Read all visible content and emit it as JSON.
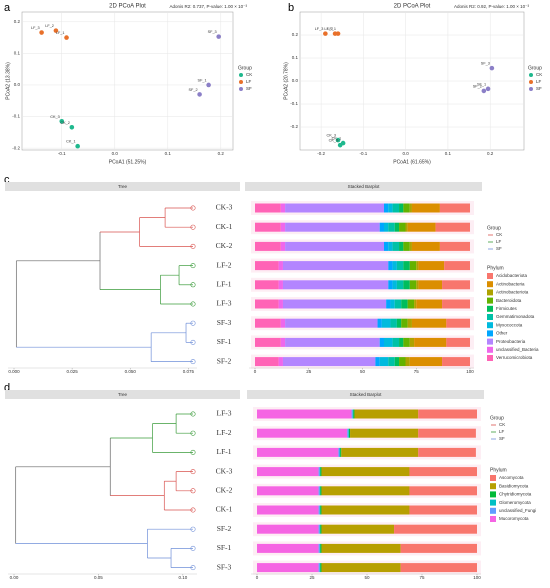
{
  "chart_data": [
    {
      "type": "scatter",
      "panel": "a",
      "title": "2D PCoA Plot",
      "subtitle": "Adonis R2: 0.737, P-value: 1.00 × 10⁻³",
      "xlabel": "PCoA1 (51.25%)",
      "ylabel": "PCoA2 (13.38%)",
      "legend_title": "Group",
      "grid": true,
      "xlim": [
        -0.175,
        0.223
      ],
      "xticks": [
        -0.1,
        {
          "value": 0,
          "label": "0.0"
        },
        0.1,
        0.2
      ],
      "ylim": [
        -0.206,
        0.231
      ],
      "yticks": [
        -0.2,
        -0.1,
        {
          "value": 0,
          "label": "0.0"
        },
        0.1,
        0.2
      ],
      "series": [
        {
          "name": "CK",
          "color": "#1fb88d",
          "x": [
            -0.1,
            -0.081,
            -0.07
          ],
          "values": [
            -0.115,
            -0.134,
            -0.194
          ],
          "labels": [
            "CK_3",
            "CK_2",
            "CK_1"
          ]
        },
        {
          "name": "LF",
          "color": "#e8702a",
          "x": [
            -0.138,
            -0.111,
            -0.091
          ],
          "values": [
            0.166,
            0.172,
            0.15
          ],
          "labels": [
            "LF_3",
            "LF_2",
            "LF_1"
          ]
        },
        {
          "name": "SF",
          "color": "#8b7fc7",
          "x": [
            0.196,
            0.177,
            0.16
          ],
          "values": [
            0.153,
            0.0,
            -0.03
          ],
          "labels": [
            "SF_3",
            "SF_1",
            "SF_2"
          ]
        }
      ]
    },
    {
      "type": "scatter",
      "panel": "b",
      "title": "2D PCoA Plot",
      "subtitle": "Adonis R2: 0.92, P-value: 1.00 × 10⁻³",
      "xlabel": "PCoA1 (61.65%)",
      "ylabel": "PCoA2 (20.78%)",
      "legend_title": "Group",
      "grid": true,
      "xlim": [
        -0.25,
        0.28
      ],
      "xticks": [
        -0.2,
        -0.1,
        {
          "value": 0,
          "label": "0.0"
        },
        0.1,
        0.2
      ],
      "ylim": [
        -0.3,
        0.3
      ],
      "yticks": [
        -0.2,
        -0.1,
        {
          "value": 0,
          "label": "0.0"
        },
        0.1,
        0.2
      ],
      "series": [
        {
          "name": "CK",
          "color": "#1fb88d",
          "x": [
            -0.16,
            -0.155,
            -0.148
          ],
          "values": [
            -0.257,
            -0.279,
            -0.27
          ],
          "labels": [
            "CK_3",
            "CK_2",
            "CK_1"
          ]
        },
        {
          "name": "LF",
          "color": "#e8702a",
          "x": [
            -0.19,
            -0.167,
            -0.16
          ],
          "values": [
            0.206,
            0.206,
            0.206
          ],
          "labels": [
            "LF_3",
            "LF_2",
            "LF_1"
          ]
        },
        {
          "name": "SF",
          "color": "#8b7fc7",
          "x": [
            0.204,
            0.185,
            0.195
          ],
          "values": [
            0.056,
            -0.043,
            -0.034
          ],
          "labels": [
            "SF_3",
            "SF_2",
            "SF_1"
          ]
        }
      ]
    },
    {
      "type": "dendrogram",
      "panel": "c",
      "title": "Tree",
      "legend_title": "Group",
      "xlim": [
        0,
        0.077
      ],
      "xticks": [
        {
          "value": 0,
          "label": "0.000"
        },
        0.025,
        {
          "value": 0.05,
          "label": "0.050"
        },
        0.075
      ],
      "groups": [
        {
          "name": "CK",
          "color": "#d9534f"
        },
        {
          "name": "LF",
          "color": "#3a9b3a"
        },
        {
          "name": "SF",
          "color": "#6f8fd8"
        }
      ],
      "leaves": [
        "CK-3",
        "CK-1",
        "CK-2",
        "LF-2",
        "LF-1",
        "LF-3",
        "SF-3",
        "SF-1",
        "SF-2"
      ],
      "leaf_groups": [
        0,
        0,
        0,
        1,
        1,
        1,
        2,
        2,
        2
      ],
      "merges": [
        {
          "left": 0,
          "right": 1,
          "x": 0.065
        },
        {
          "left": 9,
          "right": 2,
          "x": 0.054
        },
        {
          "left": 3,
          "right": 4,
          "x": 0.071
        },
        {
          "left": 11,
          "right": 5,
          "x": 0.063
        },
        {
          "left": 10,
          "right": 12,
          "x": 0.037
        },
        {
          "left": 6,
          "right": 7,
          "x": 0.074
        },
        {
          "left": 14,
          "right": 8,
          "x": 0.059
        },
        {
          "left": 13,
          "right": 15,
          "x": 0.001
        }
      ]
    },
    {
      "type": "stacked_barh",
      "title": "Stacked Barplot",
      "legend_title": "Phylum",
      "xlim": [
        0,
        100
      ],
      "xticks": [
        0,
        25,
        50,
        75,
        100
      ],
      "series": [
        {
          "name": "Acidobacteriota",
          "color": "#F8766D",
          "values": [
            14,
            16,
            14,
            12,
            13,
            13,
            11,
            11,
            13
          ]
        },
        {
          "name": "Actinobacteria",
          "color": "#DB8E00",
          "values": [
            13,
            13,
            13,
            12,
            11,
            12,
            16,
            15,
            15
          ]
        },
        {
          "name": "Actinobacteriota",
          "color": "#AEA200",
          "values": [
            1,
            1,
            1,
            1,
            1,
            1,
            2,
            2,
            2
          ]
        },
        {
          "name": "Bacteroidota",
          "color": "#64B200",
          "values": [
            3,
            3,
            3,
            3,
            3,
            3,
            3,
            3,
            3
          ]
        },
        {
          "name": "Firmicutes",
          "color": "#00BD5C",
          "values": [
            2,
            2,
            2,
            3,
            3,
            3,
            2,
            2,
            2
          ]
        },
        {
          "name": "Gemmatimonadota",
          "color": "#00C1A7",
          "values": [
            3,
            3,
            3,
            3,
            3,
            3,
            3,
            3,
            3
          ]
        },
        {
          "name": "Myxococcota",
          "color": "#00BADE",
          "values": [
            2,
            2,
            2,
            2,
            2,
            2,
            4,
            4,
            4
          ]
        },
        {
          "name": "Other",
          "color": "#00A6FF",
          "values": [
            2,
            2,
            2,
            2,
            2,
            2,
            2,
            2,
            2
          ]
        },
        {
          "name": "Proteobacteria",
          "color": "#B385FF",
          "values": [
            46,
            44,
            46,
            49,
            49,
            48,
            43,
            44,
            43
          ]
        },
        {
          "name": "unclassified_Bacteria",
          "color": "#EF67EB",
          "values": [
            2,
            2,
            2,
            2,
            2,
            2,
            2,
            2,
            2
          ]
        },
        {
          "name": "Verrucomicrobiota",
          "color": "#FF63B6",
          "values": [
            12,
            12,
            12,
            11,
            11,
            11,
            12,
            12,
            11
          ]
        }
      ]
    },
    {
      "type": "dendrogram",
      "panel": "d",
      "title": "Tree",
      "legend_title": "Group",
      "xlim": [
        0,
        0.106
      ],
      "xticks": [
        {
          "value": 0,
          "label": "0.00"
        },
        0.05,
        {
          "value": 0.1,
          "label": "0.10"
        }
      ],
      "groups": [
        {
          "name": "CK",
          "color": "#d9534f"
        },
        {
          "name": "LF",
          "color": "#3a9b3a"
        },
        {
          "name": "SF",
          "color": "#6f8fd8"
        }
      ],
      "leaves": [
        "LF-3",
        "LF-2",
        "LF-1",
        "CK-3",
        "CK-2",
        "CK-1",
        "SF-2",
        "SF-1",
        "SF-3"
      ],
      "leaf_groups": [
        1,
        1,
        1,
        0,
        0,
        0,
        2,
        2,
        2
      ],
      "merges": [
        {
          "left": 0,
          "right": 1,
          "x": 0.096
        },
        {
          "left": 9,
          "right": 2,
          "x": 0.082
        },
        {
          "left": 3,
          "right": 4,
          "x": 0.096
        },
        {
          "left": 11,
          "right": 5,
          "x": 0.089
        },
        {
          "left": 10,
          "right": 12,
          "x": 0.057
        },
        {
          "left": 7,
          "right": 8,
          "x": 0.093
        },
        {
          "left": 6,
          "right": 14,
          "x": 0.079
        },
        {
          "left": 13,
          "right": 15,
          "x": 0.001
        }
      ]
    },
    {
      "type": "stacked_barh",
      "title": "Stacked Barplot",
      "legend_title": "Phylum",
      "xlim": [
        0,
        100
      ],
      "xticks": [
        0,
        25,
        50,
        75,
        100
      ],
      "series": [
        {
          "name": "Ascomycota",
          "color": "#F8766D",
          "values": [
            26.7,
            26.2,
            26.2,
            30.7,
            30.7,
            30.7,
            37.7,
            34.7,
            34.7
          ]
        },
        {
          "name": "Basidiomycota",
          "color": "#B79F00",
          "values": [
            29,
            31,
            35,
            40,
            40,
            40,
            33,
            36,
            36
          ]
        },
        {
          "name": "Chytridiomycota",
          "color": "#00BA38",
          "values": [
            0.5,
            0.5,
            0.5,
            0.5,
            0.5,
            0.5,
            0.5,
            0.5,
            0.5
          ]
        },
        {
          "name": "Glomeromycota",
          "color": "#00BFC4",
          "values": [
            0.3,
            0.3,
            0.3,
            0.3,
            0.3,
            0.3,
            0.3,
            0.3,
            0.3
          ]
        },
        {
          "name": "unclassified_Fungi",
          "color": "#619CFF",
          "values": [
            0.5,
            0.5,
            0.5,
            0.5,
            0.5,
            0.5,
            0.5,
            0.5,
            0.5
          ]
        },
        {
          "name": "Mucoromycota",
          "color": "#F564E3",
          "values": [
            43,
            41,
            37,
            28,
            28,
            28,
            28,
            28,
            28
          ]
        }
      ]
    }
  ]
}
